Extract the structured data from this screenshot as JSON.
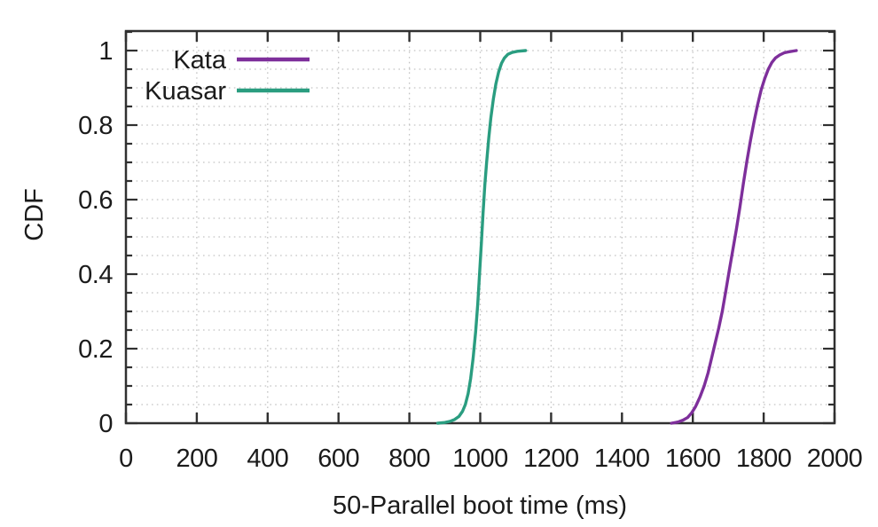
{
  "figure": {
    "background": "#ffffff"
  },
  "chart_data": {
    "type": "line",
    "subtype": "cdf-curves",
    "title": "",
    "xlabel": "50-Parallel boot time (ms)",
    "ylabel": "CDF",
    "xlim": [
      0,
      2000
    ],
    "ylim": [
      0,
      1.05
    ],
    "xticks": [
      0,
      200,
      400,
      600,
      800,
      1000,
      1200,
      1400,
      1600,
      1800,
      2000
    ],
    "yticks": [
      0,
      0.2,
      0.4,
      0.6,
      0.8,
      1
    ],
    "ytick_labels": [
      "0",
      "0.2",
      "0.4",
      "0.6",
      "0.8",
      "1"
    ],
    "y_minor_tick_step": 0.05,
    "grid": {
      "vertical": "dotted lines at each x major tick (every 200 ms)",
      "horizontal": "dotted lines every 0.05",
      "color": "#c4c4c4"
    },
    "axis_color": "#303030",
    "text_color": "#1b1b1b",
    "legend": {
      "position": "top-left-inside",
      "entries": [
        {
          "label": "Kata",
          "color": "#7e2f9b"
        },
        {
          "label": "Kuasar",
          "color": "#2a9d80"
        }
      ]
    },
    "series": [
      {
        "name": "Kata",
        "color": "#7e2f9b",
        "points": [
          [
            1540,
            0
          ],
          [
            1558,
            0.003
          ],
          [
            1572,
            0.008
          ],
          [
            1585,
            0.015
          ],
          [
            1597,
            0.028
          ],
          [
            1608,
            0.045
          ],
          [
            1620,
            0.07
          ],
          [
            1632,
            0.1
          ],
          [
            1643,
            0.135
          ],
          [
            1653,
            0.175
          ],
          [
            1663,
            0.215
          ],
          [
            1673,
            0.255
          ],
          [
            1683,
            0.3
          ],
          [
            1693,
            0.355
          ],
          [
            1703,
            0.41
          ],
          [
            1713,
            0.465
          ],
          [
            1723,
            0.52
          ],
          [
            1733,
            0.58
          ],
          [
            1743,
            0.645
          ],
          [
            1753,
            0.705
          ],
          [
            1763,
            0.76
          ],
          [
            1773,
            0.81
          ],
          [
            1783,
            0.855
          ],
          [
            1793,
            0.895
          ],
          [
            1803,
            0.925
          ],
          [
            1813,
            0.95
          ],
          [
            1823,
            0.968
          ],
          [
            1833,
            0.98
          ],
          [
            1845,
            0.988
          ],
          [
            1858,
            0.994
          ],
          [
            1872,
            0.997
          ],
          [
            1892,
            1.0
          ]
        ]
      },
      {
        "name": "Kuasar",
        "color": "#2a9d80",
        "points": [
          [
            880,
            0
          ],
          [
            900,
            0.002
          ],
          [
            915,
            0.005
          ],
          [
            928,
            0.01
          ],
          [
            940,
            0.018
          ],
          [
            950,
            0.032
          ],
          [
            958,
            0.05
          ],
          [
            966,
            0.08
          ],
          [
            973,
            0.12
          ],
          [
            980,
            0.175
          ],
          [
            987,
            0.245
          ],
          [
            993,
            0.32
          ],
          [
            998,
            0.4
          ],
          [
            1003,
            0.48
          ],
          [
            1008,
            0.565
          ],
          [
            1013,
            0.64
          ],
          [
            1018,
            0.7
          ],
          [
            1024,
            0.765
          ],
          [
            1030,
            0.82
          ],
          [
            1037,
            0.87
          ],
          [
            1044,
            0.91
          ],
          [
            1052,
            0.943
          ],
          [
            1060,
            0.966
          ],
          [
            1068,
            0.98
          ],
          [
            1078,
            0.99
          ],
          [
            1090,
            0.995
          ],
          [
            1105,
            0.998
          ],
          [
            1128,
            1.0
          ]
        ]
      }
    ]
  }
}
